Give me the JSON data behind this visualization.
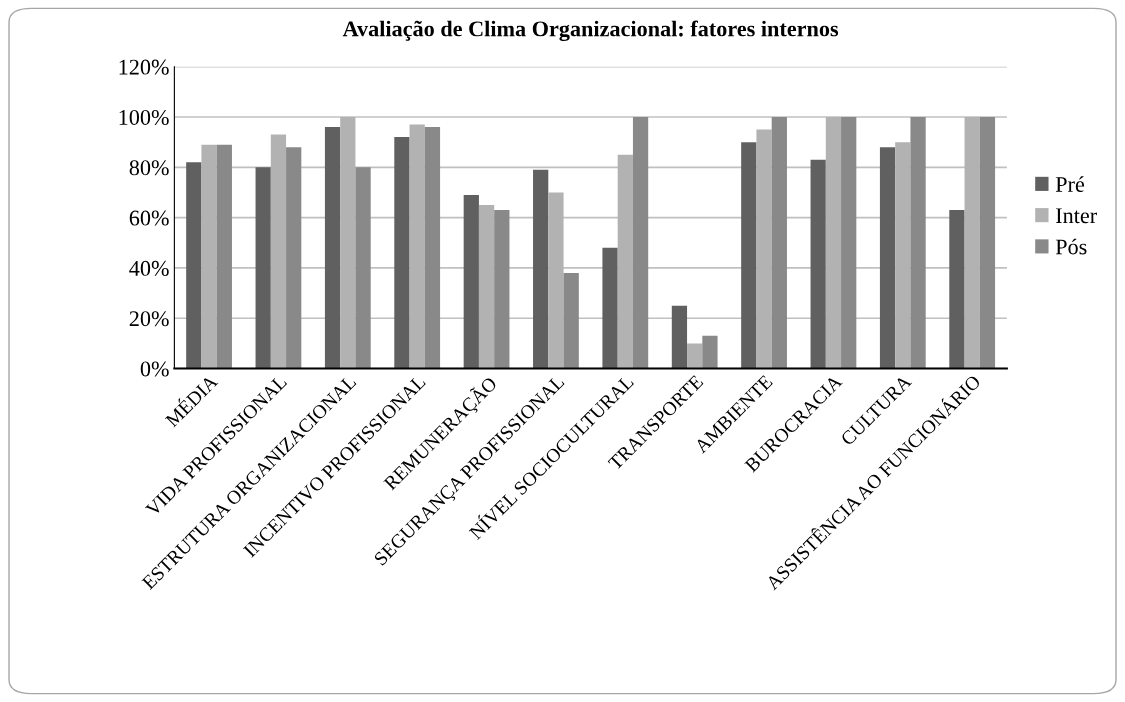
{
  "chart_data": {
    "type": "bar",
    "title": "Avaliação de Clima Organizacional: fatores internos",
    "categories": [
      "MÉDIA",
      "VIDA PROFISSIONAL",
      "ESTRUTURA ORGANIZACIONAL",
      "INCENTIVO PROFISSIONAL",
      "REMUNERAÇÃO",
      "SEGURANÇA PROFISSIONAL",
      "NÍVEL SOCIOCULTURAL",
      "TRANSPORTE",
      "AMBIENTE",
      "BUROCRACIA",
      "CULTURA",
      "ASSISTÊNCIA AO FUNCIONÁRIO"
    ],
    "series": [
      {
        "name": "Pré",
        "color": "#606060",
        "values": [
          82,
          80,
          96,
          92,
          69,
          79,
          48,
          25,
          90,
          83,
          88,
          63
        ]
      },
      {
        "name": "Inter",
        "color": "#b2b2b2",
        "values": [
          89,
          93,
          100,
          97,
          65,
          70,
          85,
          10,
          95,
          100,
          90,
          100
        ]
      },
      {
        "name": "Pós",
        "color": "#898989",
        "values": [
          89,
          88,
          80,
          96,
          63,
          38,
          100,
          13,
          100,
          100,
          100,
          100
        ]
      }
    ],
    "ylim": [
      0,
      120
    ],
    "yticks": [
      {
        "value": 0,
        "label": "0%"
      },
      {
        "value": 20,
        "label": "20%"
      },
      {
        "value": 40,
        "label": "40%"
      },
      {
        "value": 60,
        "label": "60%"
      },
      {
        "value": 80,
        "label": "80%"
      },
      {
        "value": 100,
        "label": "100%"
      },
      {
        "value": 120,
        "label": "120%"
      }
    ],
    "grid": "y",
    "legend": "right"
  }
}
